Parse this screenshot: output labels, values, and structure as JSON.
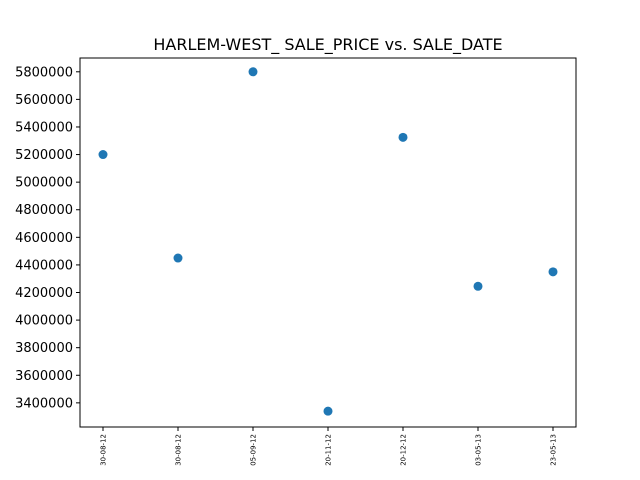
{
  "chart_data": {
    "type": "scatter",
    "title": "HARLEM-WEST_ SALE_PRICE vs. SALE_DATE",
    "xlabel": "",
    "ylabel": "",
    "ylim": [
      3225000,
      5900000
    ],
    "yticks": [
      3400000,
      3600000,
      3800000,
      4000000,
      4200000,
      4400000,
      4600000,
      4800000,
      5000000,
      5200000,
      5400000,
      5600000,
      5800000
    ],
    "categories": [
      "30-08-12",
      "30-08-12",
      "05-09-12",
      "20-11-12",
      "20-12-12",
      "03-05-13",
      "23-05-13"
    ],
    "values": [
      5200000,
      4450000,
      5800000,
      3340000,
      5325000,
      4245000,
      4350000
    ],
    "marker_color": "#1f77b4",
    "grid": false
  }
}
